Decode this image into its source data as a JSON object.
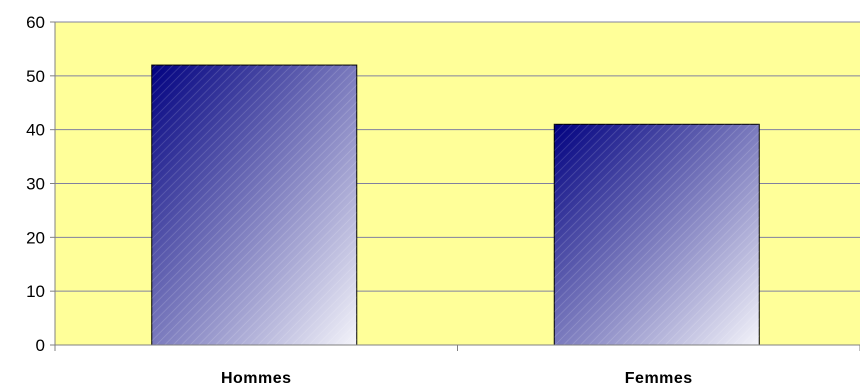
{
  "chart_data": {
    "type": "bar",
    "title": "",
    "xlabel": "",
    "ylabel": "",
    "categories": [
      "Hommes",
      "Femmes"
    ],
    "values": [
      52,
      41
    ],
    "ylim": [
      0,
      60
    ],
    "yticks": [
      0,
      10,
      20,
      30,
      40,
      50,
      60
    ],
    "grid": true,
    "legend": "none"
  },
  "colors": {
    "plot_background": "#ffff99",
    "gridline": "#8080a0",
    "bar_dark": "#000080",
    "bar_light": "#f4f4fa",
    "axis": "#808080"
  }
}
